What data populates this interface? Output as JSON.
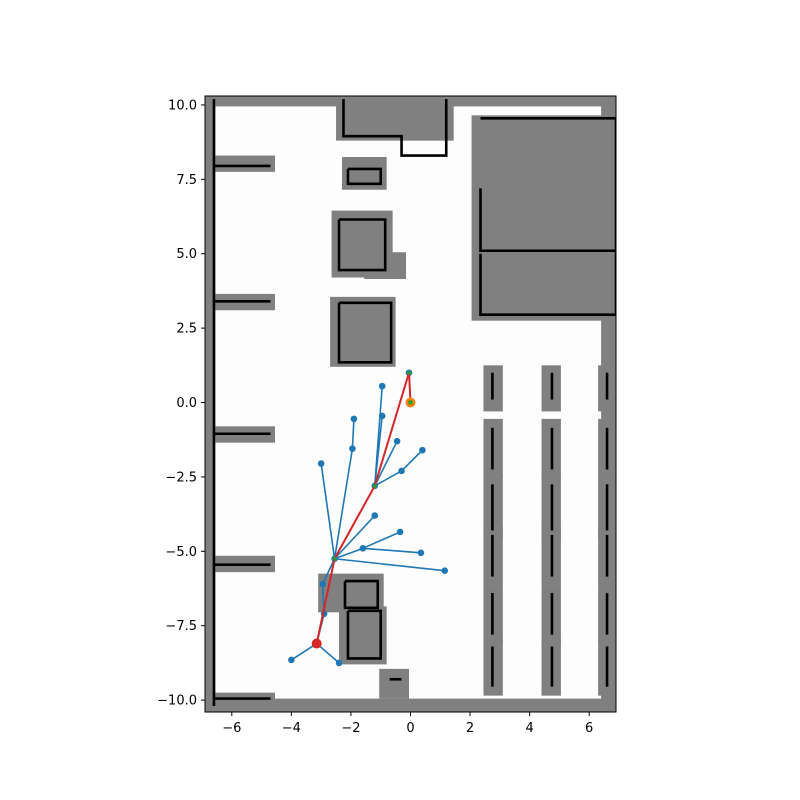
{
  "chart_data": {
    "type": "scatter",
    "title": "",
    "xlabel": "",
    "ylabel": "",
    "xlim": [
      -6.9,
      6.9
    ],
    "ylim": [
      -10.4,
      10.3
    ],
    "grid": false,
    "x_ticks": [
      -6,
      -4,
      -2,
      0,
      2,
      4,
      6
    ],
    "x_tick_labels": [
      "−6",
      "−4",
      "−2",
      "0",
      "2",
      "4",
      "6"
    ],
    "y_ticks": [
      10.0,
      7.5,
      5.0,
      2.5,
      0.0,
      -2.5,
      -5.0,
      -7.5,
      -10.0
    ],
    "y_tick_labels": [
      "10.0",
      "7.5",
      "5.0",
      "2.5",
      "0.0",
      "−2.5",
      "−5.0",
      "−7.5",
      "−10.0"
    ],
    "colors": {
      "free_space": "#fdfdfd",
      "inflated_obstacle": "#808080",
      "obstacle": "#000000",
      "tree": "#1f77b4",
      "path": "#d62728",
      "start": "#d62728",
      "goal": "#ff7f0e",
      "goal_inner": "#2ca02c"
    },
    "map": {
      "inflated_regions": [
        [
          -6.9,
          -6.55,
          -10.4,
          10.3
        ],
        [
          -6.9,
          6.9,
          9.95,
          10.3
        ],
        [
          -6.9,
          6.9,
          -10.4,
          -9.95
        ],
        [
          6.4,
          6.9,
          -10.4,
          10.3
        ],
        [
          -6.7,
          -4.55,
          7.75,
          8.3
        ],
        [
          -6.7,
          -4.55,
          3.1,
          3.65
        ],
        [
          -6.7,
          -4.55,
          -1.35,
          -0.8
        ],
        [
          -6.7,
          -4.55,
          -5.7,
          -5.15
        ],
        [
          -6.7,
          -4.55,
          -10.3,
          -9.75
        ],
        [
          -2.5,
          1.45,
          8.8,
          10.3
        ],
        [
          -2.3,
          -0.8,
          7.15,
          8.25
        ],
        [
          -2.65,
          -0.6,
          4.2,
          6.45
        ],
        [
          -1.55,
          -0.15,
          4.15,
          5.05
        ],
        [
          -2.7,
          -0.5,
          1.2,
          3.55
        ],
        [
          2.05,
          6.9,
          2.75,
          9.65
        ],
        [
          -3.1,
          -0.9,
          -7.05,
          -5.75
        ],
        [
          -2.4,
          -0.8,
          -8.8,
          -6.85
        ],
        [
          -1.05,
          -0.05,
          -9.95,
          -8.95
        ],
        [
          2.45,
          3.1,
          -0.3,
          1.25
        ],
        [
          2.45,
          3.1,
          -2.55,
          -0.55
        ],
        [
          2.45,
          3.1,
          -4.6,
          -2.45
        ],
        [
          2.45,
          3.1,
          -6.1,
          -4.15
        ],
        [
          2.45,
          3.1,
          -8.1,
          -6.1
        ],
        [
          2.45,
          3.1,
          -9.85,
          -7.95
        ],
        [
          4.4,
          5.05,
          -0.3,
          1.25
        ],
        [
          4.4,
          5.05,
          -2.55,
          -0.55
        ],
        [
          4.4,
          5.05,
          -4.6,
          -2.45
        ],
        [
          4.4,
          5.05,
          -6.1,
          -4.15
        ],
        [
          4.4,
          5.05,
          -8.1,
          -6.1
        ],
        [
          4.4,
          5.05,
          -9.85,
          -7.95
        ],
        [
          6.3,
          6.9,
          -0.3,
          1.25
        ],
        [
          6.3,
          6.9,
          -2.55,
          -0.55
        ],
        [
          6.3,
          6.9,
          -4.6,
          -2.45
        ],
        [
          6.3,
          6.9,
          -6.1,
          -4.15
        ],
        [
          6.3,
          6.9,
          -8.1,
          -6.1
        ],
        [
          6.3,
          6.9,
          -9.85,
          -7.95
        ]
      ],
      "walls": [
        [
          [
            -6.6,
            10.2
          ],
          [
            -6.6,
            -10.2
          ]
        ],
        [
          [
            -6.6,
            7.95
          ],
          [
            -4.7,
            7.95
          ]
        ],
        [
          [
            -6.6,
            3.4
          ],
          [
            -4.7,
            3.4
          ]
        ],
        [
          [
            -6.6,
            -1.05
          ],
          [
            -4.7,
            -1.05
          ]
        ],
        [
          [
            -6.6,
            -5.45
          ],
          [
            -4.7,
            -5.45
          ]
        ],
        [
          [
            -6.6,
            -9.95
          ],
          [
            -4.7,
            -9.95
          ]
        ],
        [
          [
            -2.25,
            10.2
          ],
          [
            -2.25,
            8.95
          ],
          [
            -0.3,
            8.95
          ],
          [
            -0.3,
            8.3
          ],
          [
            1.2,
            8.3
          ],
          [
            1.2,
            10.2
          ]
        ],
        [
          [
            -2.1,
            7.85
          ],
          [
            -1.0,
            7.85
          ],
          [
            -1.0,
            7.35
          ],
          [
            -2.1,
            7.35
          ],
          [
            -2.1,
            7.85
          ]
        ],
        [
          [
            -2.4,
            6.15
          ],
          [
            -0.85,
            6.15
          ],
          [
            -0.85,
            4.45
          ],
          [
            -2.4,
            4.45
          ],
          [
            -2.4,
            6.15
          ]
        ],
        [
          [
            -2.4,
            3.35
          ],
          [
            -0.65,
            3.35
          ],
          [
            -0.65,
            1.35
          ],
          [
            -2.4,
            1.35
          ],
          [
            -2.4,
            3.35
          ]
        ],
        [
          [
            2.35,
            9.55
          ],
          [
            6.9,
            9.55
          ]
        ],
        [
          [
            2.35,
            7.2
          ],
          [
            2.35,
            5.1
          ],
          [
            6.9,
            5.1
          ]
        ],
        [
          [
            2.35,
            5.0
          ],
          [
            2.35,
            2.95
          ],
          [
            6.9,
            2.95
          ]
        ],
        [
          [
            6.9,
            9.55
          ],
          [
            6.9,
            2.95
          ]
        ],
        [
          [
            -2.2,
            -6.0
          ],
          [
            -1.1,
            -6.0
          ],
          [
            -1.1,
            -6.9
          ],
          [
            -2.2,
            -6.9
          ],
          [
            -2.2,
            -6.0
          ]
        ],
        [
          [
            -2.1,
            -7.0
          ],
          [
            -1.0,
            -7.0
          ],
          [
            -1.0,
            -8.6
          ],
          [
            -2.1,
            -8.6
          ],
          [
            -2.1,
            -7.0
          ]
        ],
        [
          [
            -0.7,
            -9.3
          ],
          [
            -0.3,
            -9.3
          ]
        ],
        [
          [
            2.75,
            1.0
          ],
          [
            2.75,
            0.1
          ]
        ],
        [
          [
            2.75,
            -0.85
          ],
          [
            2.75,
            -2.25
          ]
        ],
        [
          [
            2.75,
            -2.75
          ],
          [
            2.75,
            -4.3
          ]
        ],
        [
          [
            2.75,
            -4.45
          ],
          [
            2.75,
            -5.85
          ]
        ],
        [
          [
            2.75,
            -6.4
          ],
          [
            2.75,
            -7.8
          ]
        ],
        [
          [
            2.75,
            -8.2
          ],
          [
            2.75,
            -9.55
          ]
        ],
        [
          [
            4.75,
            1.0
          ],
          [
            4.75,
            0.1
          ]
        ],
        [
          [
            4.75,
            -0.85
          ],
          [
            4.75,
            -2.25
          ]
        ],
        [
          [
            4.75,
            -2.75
          ],
          [
            4.75,
            -4.3
          ]
        ],
        [
          [
            4.75,
            -4.45
          ],
          [
            4.75,
            -5.85
          ]
        ],
        [
          [
            4.75,
            -6.4
          ],
          [
            4.75,
            -7.8
          ]
        ],
        [
          [
            4.75,
            -8.2
          ],
          [
            4.75,
            -9.55
          ]
        ],
        [
          [
            6.6,
            1.0
          ],
          [
            6.6,
            0.1
          ]
        ],
        [
          [
            6.6,
            -0.85
          ],
          [
            6.6,
            -2.25
          ]
        ],
        [
          [
            6.6,
            -2.75
          ],
          [
            6.6,
            -4.3
          ]
        ],
        [
          [
            6.6,
            -4.45
          ],
          [
            6.6,
            -5.85
          ]
        ],
        [
          [
            6.6,
            -6.4
          ],
          [
            6.6,
            -7.8
          ]
        ],
        [
          [
            6.6,
            -8.2
          ],
          [
            6.6,
            -9.55
          ]
        ]
      ]
    },
    "tree": {
      "nodes": [
        [
          -3.15,
          -8.1
        ],
        [
          -4.0,
          -8.65
        ],
        [
          -2.4,
          -8.75
        ],
        [
          -2.9,
          -7.1
        ],
        [
          -2.95,
          -6.1
        ],
        [
          -2.55,
          -5.25
        ],
        [
          -3.0,
          -2.05
        ],
        [
          -1.95,
          -1.55
        ],
        [
          -1.9,
          -0.55
        ],
        [
          -1.2,
          -2.8
        ],
        [
          -0.95,
          0.55
        ],
        [
          -0.95,
          -0.45
        ],
        [
          -0.45,
          -1.3
        ],
        [
          -0.3,
          -2.3
        ],
        [
          0.4,
          -1.6
        ],
        [
          -1.2,
          -3.8
        ],
        [
          -0.35,
          -4.35
        ],
        [
          -1.6,
          -4.9
        ],
        [
          0.35,
          -5.05
        ],
        [
          1.15,
          -5.65
        ],
        [
          -0.05,
          1.0
        ],
        [
          0.0,
          0.0
        ]
      ],
      "edges": [
        [
          0,
          1
        ],
        [
          0,
          2
        ],
        [
          0,
          3
        ],
        [
          3,
          4
        ],
        [
          4,
          5
        ],
        [
          5,
          6
        ],
        [
          5,
          7
        ],
        [
          7,
          8
        ],
        [
          5,
          9
        ],
        [
          9,
          10
        ],
        [
          9,
          11
        ],
        [
          9,
          12
        ],
        [
          9,
          13
        ],
        [
          13,
          14
        ],
        [
          5,
          15
        ],
        [
          5,
          17
        ],
        [
          17,
          16
        ],
        [
          17,
          18
        ],
        [
          5,
          19
        ],
        [
          9,
          20
        ],
        [
          20,
          21
        ]
      ]
    },
    "path": [
      [
        -3.15,
        -8.1
      ],
      [
        -2.55,
        -5.25
      ],
      [
        -1.2,
        -2.8
      ],
      [
        -0.05,
        1.0
      ],
      [
        0.0,
        0.0
      ]
    ],
    "start": [
      -3.15,
      -8.1
    ],
    "goal": [
      0.0,
      0.0
    ]
  }
}
